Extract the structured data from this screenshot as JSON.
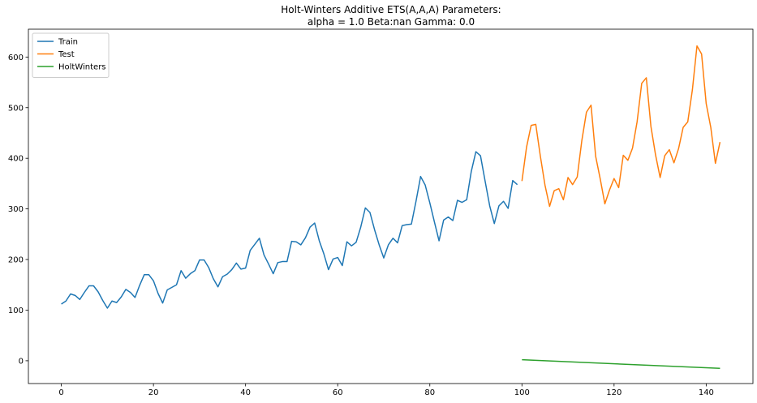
{
  "chart_data": {
    "type": "line",
    "title": "Holt-Winters Additive ETS(A,A,A) Parameters:",
    "subtitle": "alpha = 1.0  Beta:nan  Gamma: 0.0",
    "xlabel": "",
    "ylabel": "",
    "xlim": [
      -7.15,
      150.15
    ],
    "ylim": [
      -45,
      655
    ],
    "xticks": [
      0,
      20,
      40,
      60,
      80,
      100,
      120,
      140
    ],
    "yticks": [
      0,
      100,
      200,
      300,
      400,
      500,
      600
    ],
    "grid": false,
    "legend_position": "top-left",
    "series": [
      {
        "name": "Train",
        "color": "#1f77b4",
        "x_start": 0,
        "values": [
          112,
          118,
          132,
          129,
          121,
          135,
          148,
          148,
          136,
          119,
          104,
          118,
          115,
          126,
          141,
          135,
          125,
          149,
          170,
          170,
          158,
          133,
          114,
          140,
          145,
          150,
          178,
          163,
          172,
          178,
          199,
          199,
          184,
          162,
          146,
          166,
          171,
          180,
          193,
          181,
          183,
          218,
          230,
          242,
          209,
          191,
          172,
          194,
          196,
          196,
          236,
          235,
          229,
          243,
          264,
          272,
          237,
          211,
          180,
          201,
          204,
          188,
          235,
          227,
          234,
          264,
          302,
          293,
          259,
          229,
          203,
          229,
          242,
          233,
          267,
          269,
          270,
          315,
          364,
          347,
          312,
          274,
          237,
          278,
          284,
          277,
          317,
          313,
          318,
          374,
          413,
          405,
          355,
          306,
          271,
          306,
          315,
          301,
          356,
          348
        ]
      },
      {
        "name": "Test",
        "color": "#ff7f0e",
        "x_start": 100,
        "values": [
          355,
          422,
          465,
          467,
          404,
          347,
          305,
          336,
          340,
          318,
          362,
          348,
          363,
          435,
          491,
          505,
          404,
          359,
          310,
          337,
          360,
          342,
          406,
          396,
          420,
          472,
          548,
          559,
          463,
          407,
          362,
          405,
          417,
          391,
          419,
          461,
          472,
          535,
          622,
          606,
          508,
          461,
          390,
          432
        ]
      },
      {
        "name": "HoltWinters",
        "color": "#2ca02c",
        "x_start": 100,
        "x_end": 143,
        "start_value": 2,
        "end_value": -15
      }
    ]
  }
}
